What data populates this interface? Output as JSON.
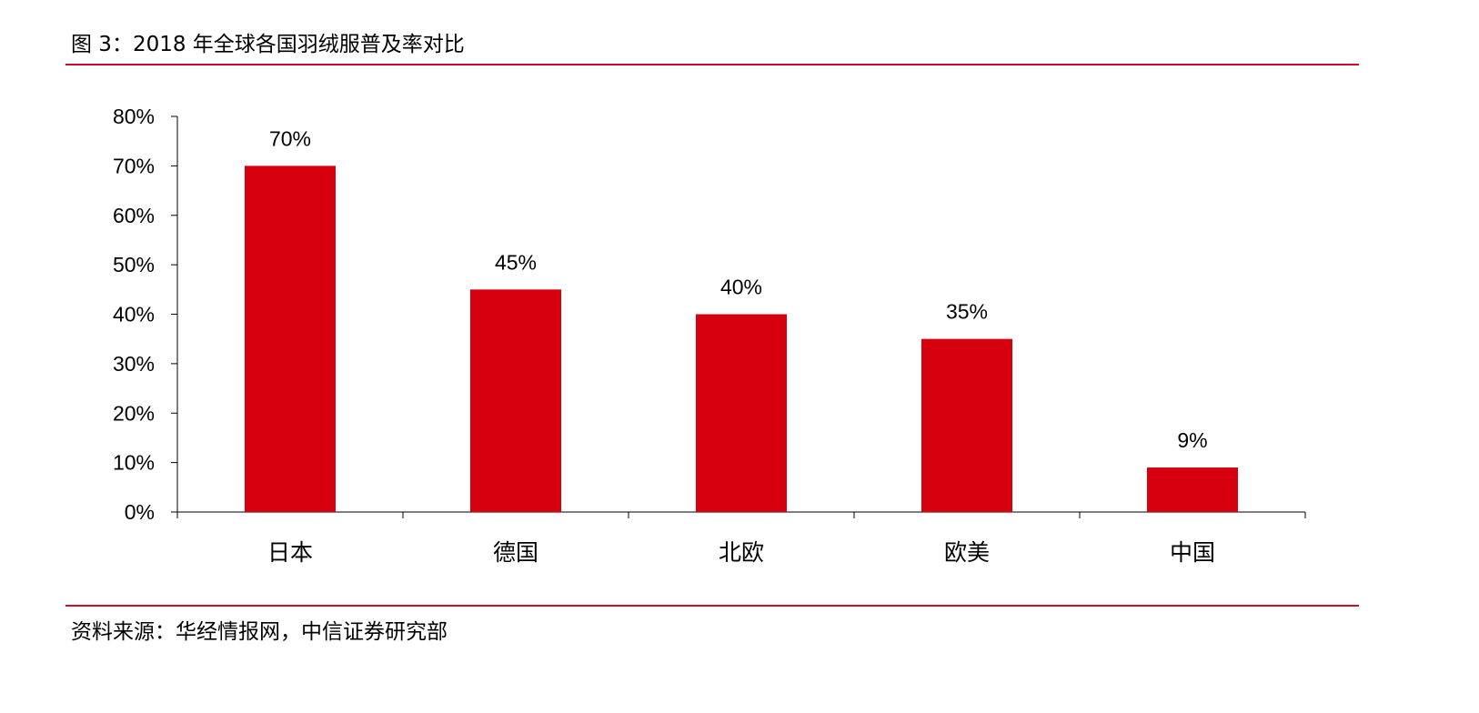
{
  "figure": {
    "title": "图 3：2018 年全球各国羽绒服普及率对比",
    "source": "资料来源：华经情报网，中信证券研究部"
  },
  "colors": {
    "bar": "#d7000f",
    "rule": "#c8102e",
    "axis": "#000000"
  },
  "chart_data": {
    "type": "bar",
    "title": "",
    "xlabel": "",
    "ylabel": "",
    "categories": [
      "日本",
      "德国",
      "北欧",
      "欧美",
      "中国"
    ],
    "values": [
      70,
      45,
      40,
      35,
      9
    ],
    "value_labels": [
      "70%",
      "45%",
      "40%",
      "35%",
      "9%"
    ],
    "ylim": [
      0,
      80
    ],
    "yticks": [
      0,
      10,
      20,
      30,
      40,
      50,
      60,
      70,
      80
    ],
    "ytick_labels": [
      "0%",
      "10%",
      "20%",
      "30%",
      "40%",
      "50%",
      "60%",
      "70%",
      "80%"
    ],
    "grid": false,
    "legend": "none"
  }
}
